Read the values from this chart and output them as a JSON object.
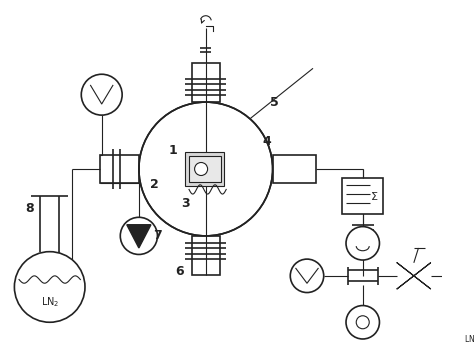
{
  "bg_color": "#ffffff",
  "line_color": "#222222",
  "lw": 1.2,
  "lw_thin": 0.8,
  "fig_w": 4.74,
  "fig_h": 3.64
}
